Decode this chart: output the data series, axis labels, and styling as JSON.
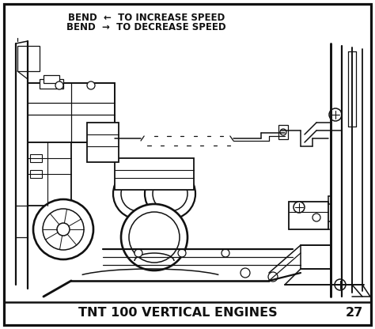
{
  "bg_color": "#ffffff",
  "border_color": "#111111",
  "title_text": "TNT 100 VERTICAL ENGINES",
  "page_number": "27",
  "line1_a": "BEND",
  "line1_arrow": "←",
  "line1_b": " TO INCREASE SPEED",
  "line2_a": "BEND",
  "line2_arrow": "→",
  "line2_b": " TO DECREASE SPEED",
  "title_fontsize": 11.5,
  "annotation_fontsize": 8.5,
  "page_num_fontsize": 11.5,
  "border_lw": 1.8,
  "diagram_lw": 1.1,
  "fig_width": 4.74,
  "fig_height": 4.16,
  "dpi": 100
}
